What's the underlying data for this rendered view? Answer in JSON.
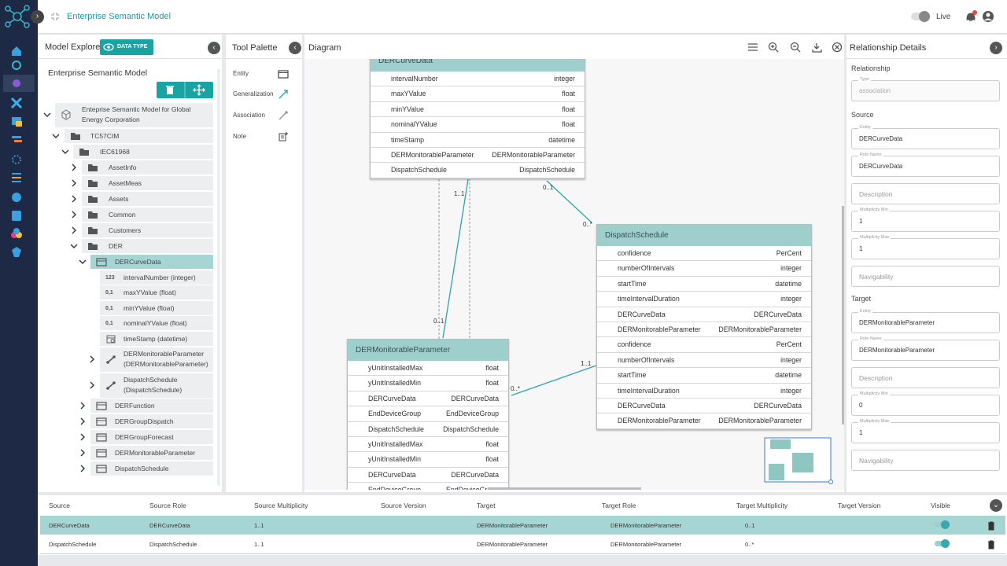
{
  "header": {
    "title": "Enterprise Semantic Model",
    "live": "Live"
  },
  "model_explorer": {
    "title": "Model Explorer",
    "data_type_button": "DATA TYPE",
    "model_name": "Enterprise Semantic Model",
    "tree": [
      "Enteprise Semantic Model for Global Energy Corporation",
      "TC57CIM",
      "IEC61968",
      "AssetInfo",
      "AssetMeas",
      "Assets",
      "Common",
      "Customers",
      "DER",
      "DERCurveData",
      {
        "icon": "123",
        "label": "intervalNumber (integer)"
      },
      {
        "icon": "0,1",
        "label": "maxYValue (float)"
      },
      {
        "icon": "0,1",
        "label": "minYValue (float)"
      },
      {
        "icon": "0,1",
        "label": "nominalYValue (float)"
      },
      "timeStamp (datetime)",
      "DERMonitorableParameter (DERMonitorableParameter)",
      "DispatchSchedule (DispatchSchedule)",
      "DERFunction",
      "DERGroupDispatch",
      "DERGroupForecast",
      "DERMonitorableParameter",
      "DispatchSchedule"
    ]
  },
  "tool_palette": {
    "title": "Tool Palette",
    "tools": [
      "Entity",
      "Generalization",
      "Association",
      "Note"
    ]
  },
  "diagram": {
    "title": "Diagram",
    "entities": [
      {
        "name": "DERCurveData",
        "attributes": [
          {
            "name": "intervalNumber",
            "type": "integer"
          },
          {
            "name": "maxYValue",
            "type": "float"
          },
          {
            "name": "minYValue",
            "type": "float"
          },
          {
            "name": "nominalYValue",
            "type": "float"
          },
          {
            "name": "timeStamp",
            "type": "datetime"
          },
          {
            "name": "DERMonitorableParameter",
            "type": "DERMonitorableParameter"
          },
          {
            "name": "DispatchSchedule",
            "type": "DispatchSchedule"
          }
        ]
      },
      {
        "name": "DispatchSchedule",
        "attributes": [
          {
            "name": "confidence",
            "type": "PerCent"
          },
          {
            "name": "numberOfIntervals",
            "type": "integer"
          },
          {
            "name": "startTime",
            "type": "datetime"
          },
          {
            "name": "timeIntervalDuration",
            "type": "integer"
          },
          {
            "name": "DERCurveData",
            "type": "DERCurveData"
          },
          {
            "name": "DERMonitorableParameter",
            "type": "DERMonitorableParameter"
          },
          {
            "name": "confidence",
            "type": "PerCent"
          },
          {
            "name": "numberOfIntervals",
            "type": "integer"
          },
          {
            "name": "startTime",
            "type": "datetime"
          },
          {
            "name": "timeIntervalDuration",
            "type": "integer"
          },
          {
            "name": "DERCurveData",
            "type": "DERCurveData"
          },
          {
            "name": "DERMonitorableParameter",
            "type": "DERMonitorableParameter"
          }
        ]
      },
      {
        "name": "DERMonitorableParameter",
        "attributes": [
          {
            "name": "yUnitInstalledMax",
            "type": "float"
          },
          {
            "name": "yUnitInstalledMin",
            "type": "float"
          },
          {
            "name": "DERCurveData",
            "type": "DERCurveData"
          },
          {
            "name": "EndDeviceGroup",
            "type": "EndDeviceGroup"
          },
          {
            "name": "DispatchSchedule",
            "type": "DispatchSchedule"
          },
          {
            "name": "yUnitInstalledMax",
            "type": "float"
          },
          {
            "name": "yUnitInstalledMin",
            "type": "float"
          },
          {
            "name": "DERCurveData",
            "type": "DERCurveData"
          },
          {
            "name": "EndDeviceGroup",
            "type": "EndDeviceGroup"
          }
        ]
      }
    ],
    "multiplicities": [
      "1..1",
      "0..1",
      "0..*",
      "0..1",
      "1..1",
      "0..*"
    ]
  },
  "relationship_details": {
    "title": "Relationship Details",
    "sections": [
      "Relationship",
      "Source",
      "Target"
    ],
    "fields": [
      {
        "label": "Type",
        "value": "association"
      },
      {
        "label": "Entity",
        "value": "DERCurveData"
      },
      {
        "label": "Role Name",
        "value": "DERCurveData"
      },
      {
        "placeholder": "Description"
      },
      {
        "label": "Multiplicity Min",
        "value": "1"
      },
      {
        "label": "Multiplicity Max",
        "value": "1"
      },
      {
        "placeholder": "Navigability"
      },
      {
        "label": "Entity",
        "value": "DERMonitorableParameter"
      },
      {
        "label": "Role Name",
        "value": "DERMonitorableParameter"
      },
      {
        "placeholder": "Description"
      },
      {
        "label": "Multiplicity Min",
        "value": "0"
      },
      {
        "label": "Multiplicity Max",
        "value": "1"
      },
      {
        "placeholder": "Navigability"
      }
    ]
  },
  "table": {
    "headers": [
      "Source",
      "Source Role",
      "Source Multiplicity",
      "Source Version",
      "Target",
      "Target Role",
      "Target Multiplicity",
      "Target Version",
      "Visible"
    ],
    "rows": [
      {
        "source": "DERCurveData",
        "source_role": "DERCurveData",
        "source_multiplicity": "1..1",
        "target": "DERMonitorableParameter",
        "target_role": "DERMonitorableParameter",
        "target_multiplicity": "0..1"
      },
      {
        "source": "DispatchSchedule",
        "source_role": "DispatchSchedule",
        "source_multiplicity": "1..1",
        "target": "DERMonitorableParameter",
        "target_role": "DERMonitorableParameter",
        "target_multiplicity": "0..*"
      }
    ]
  }
}
